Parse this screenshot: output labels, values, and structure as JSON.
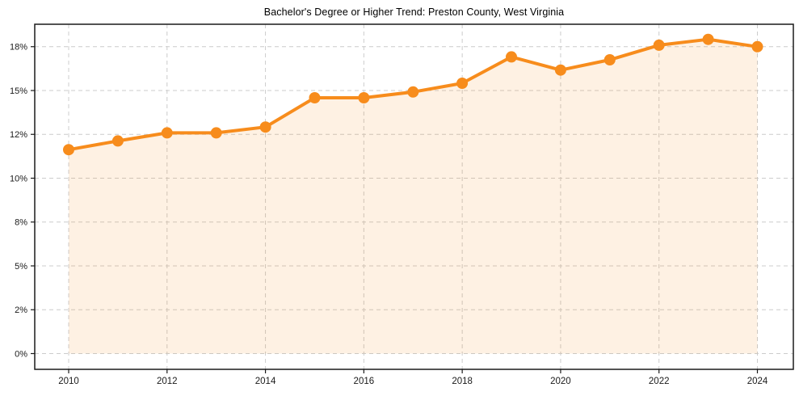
{
  "title": "Bachelor's Degree or Higher Trend: Preston County, West Virginia",
  "chart_data": {
    "type": "area",
    "title": "Bachelor's Degree or Higher Trend: Preston County, West Virginia",
    "series_name": "Bachelor's Degree or Higher (%)",
    "x": [
      2010,
      2011,
      2012,
      2013,
      2014,
      2015,
      2016,
      2017,
      2018,
      2019,
      2020,
      2021,
      2022,
      2023,
      2024
    ],
    "values": [
      11.3,
      11.7,
      12.1,
      12.1,
      12.5,
      14.5,
      14.5,
      14.9,
      15.5,
      17.3,
      16.4,
      17.1,
      18.1,
      18.5,
      18.0
    ],
    "xlabel": "",
    "ylabel": "",
    "x_ticks": [
      2010,
      2012,
      2014,
      2016,
      2018,
      2020,
      2022,
      2024
    ],
    "x_tick_labels": [
      "2010",
      "2012",
      "2014",
      "2016",
      "2018",
      "2020",
      "2022",
      "2024"
    ],
    "y_ticks": [
      0,
      2,
      5,
      8,
      10,
      12,
      15,
      18
    ],
    "y_tick_labels": [
      "0%",
      "2%",
      "5%",
      "8%",
      "10%",
      "12%",
      "15%",
      "18%"
    ],
    "grid": true,
    "grid_style": "dashed",
    "legend": false,
    "marker": "circle",
    "colors": {
      "line": "#F78C1C",
      "marker": "#F78C1C",
      "fill": "rgba(247,140,28,0.12)",
      "grid": "#cccccc",
      "frame": "#1a1a1a",
      "tick_text": "#1a1a1a",
      "title_text": "#000000",
      "background": "#ffffff"
    }
  }
}
